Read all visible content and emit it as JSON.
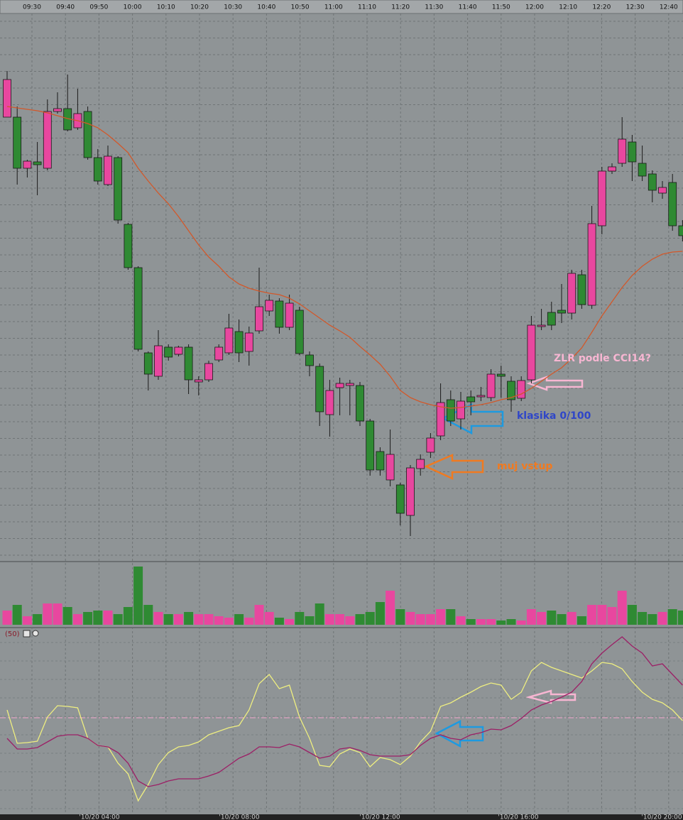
{
  "chart_data": [
    {
      "type": "candlestick",
      "time_labels": [
        "09:30",
        "09:40",
        "09:50",
        "10:00",
        "10:10",
        "10:20",
        "10:30",
        "10:40",
        "10:50",
        "11:00",
        "11:10",
        "11:20",
        "11:30",
        "11:40",
        "11:50",
        "12:00",
        "12:10",
        "12:20",
        "12:30",
        "12:40"
      ],
      "open": [
        635,
        635,
        563,
        572,
        563,
        643,
        647,
        620,
        643,
        578,
        540,
        578,
        484,
        423,
        303,
        270,
        311,
        301,
        311,
        262,
        265,
        293,
        303,
        333,
        305,
        334,
        362,
        376,
        339,
        363,
        300,
        284,
        216,
        254,
        257,
        257,
        207,
        164,
        124,
        117,
        74,
        140,
        163,
        186,
        237,
        210,
        241,
        241,
        240,
        273,
        263,
        239,
        265,
        340,
        360,
        363,
        359,
        413,
        370,
        482,
        559,
        570,
        600,
        570,
        555,
        528,
        543,
        482
      ],
      "high": [
        700,
        650,
        575,
        600,
        660,
        670,
        695,
        675,
        650,
        590,
        595,
        580,
        486,
        425,
        305,
        335,
        315,
        313,
        315,
        270,
        292,
        315,
        358,
        350,
        340,
        423,
        385,
        380,
        385,
        368,
        305,
        288,
        265,
        268,
        265,
        262,
        210,
        170,
        195,
        120,
        145,
        160,
        190,
        260,
        250,
        248,
        250,
        255,
        280,
        285,
        270,
        270,
        355,
        365,
        375,
        400,
        420,
        420,
        510,
        565,
        570,
        635,
        610,
        595,
        560,
        545,
        555,
        490
      ],
      "low": [
        635,
        540,
        550,
        525,
        560,
        640,
        615,
        617,
        575,
        540,
        538,
        485,
        420,
        305,
        250,
        265,
        292,
        298,
        245,
        243,
        262,
        290,
        300,
        290,
        285,
        330,
        355,
        330,
        335,
        300,
        270,
        200,
        185,
        215,
        215,
        200,
        130,
        130,
        115,
        60,
        45,
        130,
        155,
        180,
        200,
        195,
        215,
        235,
        235,
        240,
        220,
        235,
        260,
        335,
        335,
        345,
        350,
        365,
        365,
        470,
        555,
        565,
        545,
        545,
        515,
        520,
        475,
        460
      ],
      "close": [
        688,
        563,
        573,
        568,
        643,
        647,
        617,
        640,
        578,
        545,
        580,
        490,
        423,
        308,
        273,
        313,
        297,
        311,
        265,
        265,
        288,
        311,
        338,
        303,
        331,
        368,
        377,
        339,
        373,
        302,
        285,
        220,
        250,
        260,
        260,
        207,
        138,
        138,
        160,
        77,
        141,
        153,
        183,
        233,
        207,
        235,
        234,
        243,
        273,
        270,
        237,
        264,
        342,
        342,
        342,
        359,
        415,
        371,
        485,
        559,
        565,
        604,
        572,
        552,
        532,
        536,
        482,
        468
      ],
      "up_color": "#e8479f",
      "down_color": "#2f8a33",
      "ylim": [
        10,
        800
      ],
      "moving_average": {
        "color": "#d2582a",
        "values": [
          650,
          648,
          646,
          644,
          641,
          637,
          633,
          630,
          626,
          620,
          610,
          598,
          585,
          563,
          545,
          528,
          513,
          495,
          475,
          455,
          438,
          425,
          410,
          400,
          394,
          390,
          387,
          385,
          380,
          372,
          362,
          352,
          342,
          334,
          325,
          312,
          300,
          287,
          270,
          250,
          240,
          234,
          230,
          227,
          225,
          226,
          228,
          230,
          233,
          237,
          240,
          245,
          253,
          263,
          273,
          282,
          295,
          310,
          332,
          355,
          375,
          395,
          412,
          425,
          435,
          442,
          445,
          446
        ]
      },
      "annotations": [
        {
          "text": "ZLR podle CCI14?",
          "color": "#f7b6d2"
        },
        {
          "text": "klasika 0/100",
          "color": "#2f46c8"
        },
        {
          "text": "muj vstup",
          "color": "#f07a20"
        }
      ]
    },
    {
      "type": "bar",
      "values": [
        20,
        28,
        12,
        15,
        30,
        30,
        25,
        15,
        18,
        20,
        20,
        15,
        25,
        82,
        28,
        18,
        15,
        15,
        18,
        15,
        15,
        12,
        10,
        15,
        10,
        28,
        18,
        10,
        8,
        18,
        12,
        30,
        15,
        15,
        12,
        15,
        18,
        32,
        48,
        22,
        18,
        15,
        15,
        22,
        22,
        12,
        8,
        8,
        8,
        6,
        8,
        6,
        22,
        18,
        20,
        15,
        18,
        12,
        28,
        28,
        25,
        48,
        28,
        18,
        15,
        18,
        22,
        20
      ],
      "ylim": [
        0,
        90
      ]
    },
    {
      "type": "line",
      "label": "(50)",
      "series": [
        {
          "color": "#eeee80",
          "values": [
            11,
            -36,
            -35,
            -33,
            1,
            17,
            16,
            14,
            -29,
            -39,
            -41,
            -64,
            -79,
            -117,
            -94,
            -66,
            -49,
            -41,
            -39,
            -34,
            -24,
            -19,
            -14,
            -11,
            11,
            48,
            61,
            41,
            46,
            1,
            -29,
            -67,
            -69,
            -51,
            -44,
            -49,
            -69,
            -56,
            -59,
            -66,
            -54,
            -34,
            -19,
            16,
            21,
            29,
            36,
            44,
            49,
            46,
            26,
            36,
            66,
            78,
            71,
            66,
            61,
            56,
            66,
            78,
            76,
            69,
            51,
            36,
            26,
            21,
            11,
            -4
          ]
        },
        {
          "color": "#9c1f66",
          "values": [
            -29,
            -44,
            -44,
            -42,
            -34,
            -26,
            -24,
            -24,
            -29,
            -39,
            -41,
            -49,
            -64,
            -89,
            -97,
            -94,
            -89,
            -86,
            -86,
            -86,
            -82,
            -77,
            -67,
            -57,
            -51,
            -41,
            -41,
            -42,
            -37,
            -41,
            -49,
            -57,
            -54,
            -44,
            -42,
            -46,
            -52,
            -54,
            -54,
            -54,
            -52,
            -39,
            -29,
            -24,
            -29,
            -31,
            -24,
            -21,
            -16,
            -17,
            -11,
            -1,
            11,
            18,
            23,
            29,
            36,
            51,
            76,
            91,
            103,
            114,
            101,
            91,
            73,
            76,
            61,
            46
          ]
        }
      ],
      "reference_line": 0,
      "reference_color": "#f2a6cc",
      "ylim": [
        -134,
        121
      ]
    }
  ],
  "date_labels": [
    "'10/20 04:00",
    "'10/20 08:00",
    "'10/20 12:00",
    "'10/20 16:00",
    "'10/20 20:00"
  ]
}
